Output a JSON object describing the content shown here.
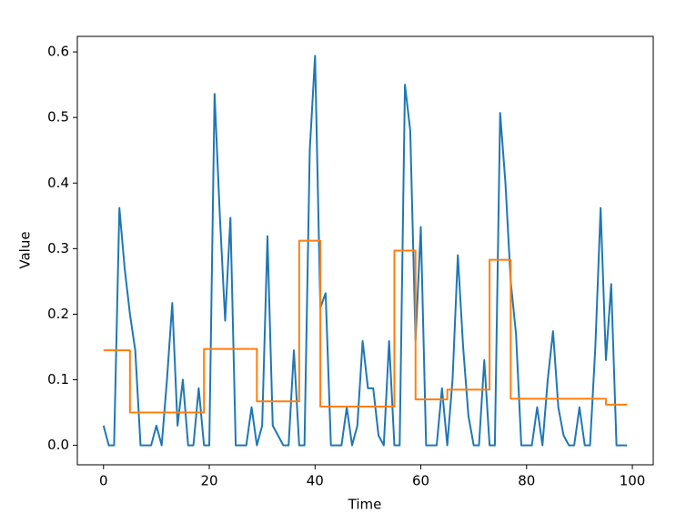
{
  "chart_data": {
    "type": "line",
    "xlabel": "Time",
    "ylabel": "Value",
    "x": [
      0,
      1,
      2,
      3,
      4,
      5,
      6,
      7,
      8,
      9,
      10,
      11,
      12,
      13,
      14,
      15,
      16,
      17,
      18,
      19,
      20,
      21,
      22,
      23,
      24,
      25,
      26,
      27,
      28,
      29,
      30,
      31,
      32,
      33,
      34,
      35,
      36,
      37,
      38,
      39,
      40,
      41,
      42,
      43,
      44,
      45,
      46,
      47,
      48,
      49,
      50,
      51,
      52,
      53,
      54,
      55,
      56,
      57,
      58,
      59,
      60,
      61,
      62,
      63,
      64,
      65,
      66,
      67,
      68,
      69,
      70,
      71,
      72,
      73,
      74,
      75,
      76,
      77,
      78,
      79,
      80,
      81,
      82,
      83,
      84,
      85,
      86,
      87,
      88,
      89,
      90,
      91,
      92,
      93,
      94,
      95,
      96,
      97,
      98,
      99
    ],
    "series": [
      {
        "color": "#1f77b4",
        "values": [
          0.03,
          0,
          0,
          0.362,
          0.27,
          0.2,
          0.145,
          0,
          0,
          0,
          0.03,
          0,
          0.1,
          0.217,
          0.03,
          0.1,
          0,
          0,
          0.087,
          0,
          0,
          0.536,
          0.35,
          0.19,
          0.347,
          0,
          0,
          0,
          0.058,
          0,
          0.03,
          0.319,
          0.03,
          0.015,
          0,
          0,
          0.145,
          0,
          0,
          0.45,
          0.594,
          0.21,
          0.232,
          0,
          0,
          0,
          0.058,
          0,
          0.03,
          0.159,
          0.087,
          0.087,
          0.015,
          0,
          0.159,
          0,
          0,
          0.55,
          0.48,
          0.16,
          0.333,
          0,
          0,
          0,
          0.087,
          0,
          0.1,
          0.29,
          0.15,
          0.045,
          0,
          0,
          0.13,
          0,
          0,
          0.507,
          0.4,
          0.25,
          0.17,
          0,
          0,
          0,
          0.058,
          0,
          0.1,
          0.174,
          0.058,
          0.015,
          0,
          0,
          0.058,
          0,
          0,
          0.15,
          0.362,
          0.13,
          0.246,
          0,
          0,
          0
        ]
      },
      {
        "color": "#ff7f0e",
        "step": "post",
        "values": [
          0.145,
          0.145,
          0.145,
          0.145,
          0.145,
          0.05,
          0.05,
          0.05,
          0.05,
          0.05,
          0.05,
          0.05,
          0.05,
          0.05,
          0.05,
          0.05,
          0.05,
          0.05,
          0.05,
          0.147,
          0.147,
          0.147,
          0.147,
          0.147,
          0.147,
          0.147,
          0.147,
          0.147,
          0.147,
          0.067,
          0.067,
          0.067,
          0.067,
          0.067,
          0.067,
          0.067,
          0.067,
          0.312,
          0.312,
          0.312,
          0.312,
          0.059,
          0.059,
          0.059,
          0.059,
          0.059,
          0.059,
          0.059,
          0.059,
          0.059,
          0.059,
          0.059,
          0.059,
          0.059,
          0.059,
          0.297,
          0.297,
          0.297,
          0.297,
          0.07,
          0.07,
          0.07,
          0.07,
          0.07,
          0.07,
          0.085,
          0.085,
          0.085,
          0.085,
          0.085,
          0.085,
          0.085,
          0.085,
          0.283,
          0.283,
          0.283,
          0.283,
          0.071,
          0.071,
          0.071,
          0.071,
          0.071,
          0.071,
          0.071,
          0.071,
          0.071,
          0.071,
          0.071,
          0.071,
          0.071,
          0.071,
          0.071,
          0.071,
          0.071,
          0.071,
          0.062,
          0.062,
          0.062,
          0.062,
          0.062
        ]
      }
    ],
    "xlim": [
      -4.95,
      103.95
    ],
    "xticks": [
      0,
      20,
      40,
      60,
      80,
      100
    ],
    "ylim": [
      -0.0297,
      0.6237
    ],
    "yticks": [
      {
        "value": 0,
        "label": "0.0"
      },
      0.1,
      0.2,
      0.3,
      0.4,
      0.5,
      0.6
    ],
    "grid": false
  }
}
